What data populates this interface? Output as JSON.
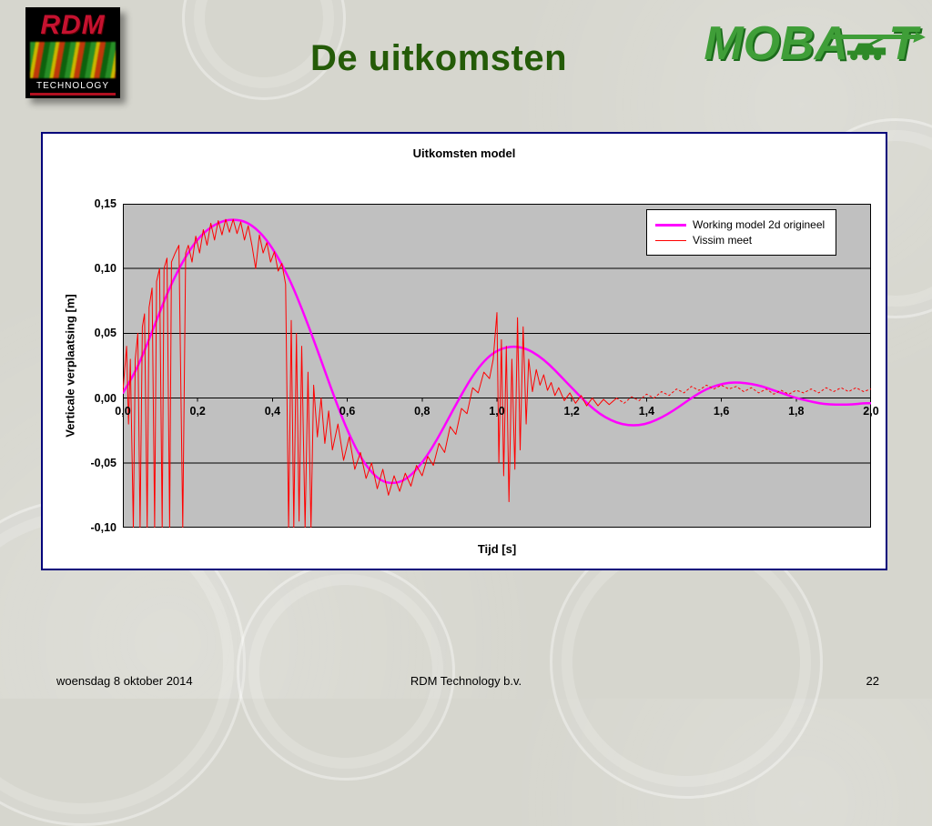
{
  "slide": {
    "title": "De uitkomsten",
    "footer": {
      "date": "woensdag 8 oktober 2014",
      "company": "RDM Technology b.v.",
      "page_number": "22"
    }
  },
  "logos": {
    "rdm": {
      "name": "RDM",
      "subtitle": "TECHNOLOGY"
    },
    "mobat": {
      "part1": "MOB",
      "part2": "A",
      "part3": "T"
    }
  },
  "colors": {
    "title_green": "#245b08",
    "panel_border": "#00007a",
    "plot_background": "#c0c0c0",
    "series_model": "#ff00ff",
    "series_vissim": "#ff0000"
  },
  "chart_data": {
    "type": "line",
    "title": "Uitkomsten model",
    "xlabel": "Tijd [s]",
    "ylabel": "Verticale verplaatsing [m]",
    "xlim": [
      0,
      2
    ],
    "ylim": [
      -0.1,
      0.15
    ],
    "grid": "horizontal",
    "plot_bg": "#c0c0c0",
    "legend_position": "top-right-inside",
    "x_ticks": {
      "values": [
        0.0,
        0.2,
        0.4,
        0.6,
        0.8,
        1.0,
        1.2,
        1.4,
        1.6,
        1.8,
        2.0
      ],
      "labels": [
        "0,0",
        "0,2",
        "0,4",
        "0,6",
        "0,8",
        "1,0",
        "1,2",
        "1,4",
        "1,6",
        "1,8",
        "2,0"
      ]
    },
    "y_ticks": {
      "values": [
        0.15,
        0.1,
        0.05,
        0.0,
        -0.05,
        -0.1
      ],
      "labels": [
        "0,15",
        "0,10",
        "0,05",
        "0,00",
        "-0,05",
        "-0,10"
      ]
    },
    "series": [
      {
        "name": "Working model 2d origineel",
        "color": "#ff00ff",
        "width": 2.5,
        "smooth": true,
        "points": [
          [
            0.0,
            0.004
          ],
          [
            0.03,
            0.018
          ],
          [
            0.06,
            0.038
          ],
          [
            0.09,
            0.06
          ],
          [
            0.12,
            0.082
          ],
          [
            0.15,
            0.1
          ],
          [
            0.18,
            0.115
          ],
          [
            0.21,
            0.126
          ],
          [
            0.24,
            0.133
          ],
          [
            0.27,
            0.137
          ],
          [
            0.3,
            0.138
          ],
          [
            0.33,
            0.136
          ],
          [
            0.36,
            0.13
          ],
          [
            0.39,
            0.12
          ],
          [
            0.42,
            0.106
          ],
          [
            0.45,
            0.089
          ],
          [
            0.48,
            0.068
          ],
          [
            0.51,
            0.045
          ],
          [
            0.54,
            0.021
          ],
          [
            0.57,
            -0.003
          ],
          [
            0.6,
            -0.025
          ],
          [
            0.63,
            -0.043
          ],
          [
            0.66,
            -0.056
          ],
          [
            0.69,
            -0.064
          ],
          [
            0.72,
            -0.066
          ],
          [
            0.75,
            -0.064
          ],
          [
            0.78,
            -0.057
          ],
          [
            0.81,
            -0.046
          ],
          [
            0.84,
            -0.032
          ],
          [
            0.87,
            -0.016
          ],
          [
            0.9,
            0.0
          ],
          [
            0.93,
            0.015
          ],
          [
            0.96,
            0.027
          ],
          [
            0.99,
            0.035
          ],
          [
            1.02,
            0.039
          ],
          [
            1.05,
            0.04
          ],
          [
            1.08,
            0.038
          ],
          [
            1.11,
            0.033
          ],
          [
            1.14,
            0.026
          ],
          [
            1.17,
            0.017
          ],
          [
            1.2,
            0.008
          ],
          [
            1.23,
            -0.001
          ],
          [
            1.26,
            -0.009
          ],
          [
            1.29,
            -0.015
          ],
          [
            1.32,
            -0.019
          ],
          [
            1.35,
            -0.021
          ],
          [
            1.38,
            -0.021
          ],
          [
            1.41,
            -0.019
          ],
          [
            1.44,
            -0.015
          ],
          [
            1.47,
            -0.01
          ],
          [
            1.5,
            -0.004
          ],
          [
            1.53,
            0.002
          ],
          [
            1.56,
            0.007
          ],
          [
            1.59,
            0.01
          ],
          [
            1.62,
            0.012
          ],
          [
            1.65,
            0.012
          ],
          [
            1.68,
            0.011
          ],
          [
            1.71,
            0.009
          ],
          [
            1.74,
            0.006
          ],
          [
            1.77,
            0.003
          ],
          [
            1.8,
            0.0
          ],
          [
            1.83,
            -0.002
          ],
          [
            1.86,
            -0.004
          ],
          [
            1.89,
            -0.005
          ],
          [
            1.92,
            -0.005
          ],
          [
            1.95,
            -0.005
          ],
          [
            1.98,
            -0.004
          ],
          [
            2.0,
            -0.004
          ]
        ]
      },
      {
        "name": "Vissim meet",
        "color": "#ff0000",
        "width": 1,
        "smooth": false,
        "dash_from_x": 1.32,
        "points": [
          [
            0.0,
            0.005
          ],
          [
            0.01,
            0.04
          ],
          [
            0.015,
            -0.02
          ],
          [
            0.02,
            0.03
          ],
          [
            0.028,
            -0.1
          ],
          [
            0.033,
            0.03
          ],
          [
            0.04,
            0.05
          ],
          [
            0.046,
            -0.1
          ],
          [
            0.052,
            0.055
          ],
          [
            0.058,
            0.065
          ],
          [
            0.065,
            -0.1
          ],
          [
            0.07,
            0.07
          ],
          [
            0.078,
            0.085
          ],
          [
            0.085,
            -0.1
          ],
          [
            0.09,
            0.09
          ],
          [
            0.098,
            0.1
          ],
          [
            0.105,
            -0.1
          ],
          [
            0.11,
            0.1
          ],
          [
            0.118,
            0.108
          ],
          [
            0.125,
            -0.1
          ],
          [
            0.13,
            0.105
          ],
          [
            0.14,
            0.112
          ],
          [
            0.15,
            0.118
          ],
          [
            0.16,
            -0.1
          ],
          [
            0.168,
            0.112
          ],
          [
            0.175,
            0.118
          ],
          [
            0.185,
            0.105
          ],
          [
            0.195,
            0.125
          ],
          [
            0.205,
            0.112
          ],
          [
            0.215,
            0.13
          ],
          [
            0.225,
            0.118
          ],
          [
            0.235,
            0.135
          ],
          [
            0.245,
            0.122
          ],
          [
            0.255,
            0.137
          ],
          [
            0.265,
            0.126
          ],
          [
            0.275,
            0.138
          ],
          [
            0.285,
            0.128
          ],
          [
            0.295,
            0.138
          ],
          [
            0.305,
            0.127
          ],
          [
            0.315,
            0.136
          ],
          [
            0.325,
            0.122
          ],
          [
            0.335,
            0.133
          ],
          [
            0.345,
            0.118
          ],
          [
            0.355,
            0.1
          ],
          [
            0.365,
            0.126
          ],
          [
            0.375,
            0.112
          ],
          [
            0.385,
            0.12
          ],
          [
            0.395,
            0.105
          ],
          [
            0.405,
            0.113
          ],
          [
            0.415,
            0.098
          ],
          [
            0.425,
            0.104
          ],
          [
            0.435,
            0.088
          ],
          [
            0.443,
            -0.1
          ],
          [
            0.45,
            0.06
          ],
          [
            0.457,
            -0.1
          ],
          [
            0.464,
            0.05
          ],
          [
            0.471,
            -0.095
          ],
          [
            0.478,
            0.04
          ],
          [
            0.487,
            -0.1
          ],
          [
            0.495,
            0.02
          ],
          [
            0.503,
            -0.1
          ],
          [
            0.51,
            0.01
          ],
          [
            0.52,
            -0.03
          ],
          [
            0.53,
            0.0
          ],
          [
            0.54,
            -0.035
          ],
          [
            0.55,
            -0.01
          ],
          [
            0.56,
            -0.04
          ],
          [
            0.575,
            -0.02
          ],
          [
            0.59,
            -0.048
          ],
          [
            0.605,
            -0.03
          ],
          [
            0.62,
            -0.055
          ],
          [
            0.635,
            -0.042
          ],
          [
            0.65,
            -0.062
          ],
          [
            0.665,
            -0.05
          ],
          [
            0.68,
            -0.07
          ],
          [
            0.695,
            -0.055
          ],
          [
            0.71,
            -0.075
          ],
          [
            0.725,
            -0.06
          ],
          [
            0.74,
            -0.072
          ],
          [
            0.755,
            -0.058
          ],
          [
            0.77,
            -0.068
          ],
          [
            0.785,
            -0.052
          ],
          [
            0.8,
            -0.06
          ],
          [
            0.815,
            -0.045
          ],
          [
            0.83,
            -0.052
          ],
          [
            0.845,
            -0.035
          ],
          [
            0.86,
            -0.042
          ],
          [
            0.875,
            -0.022
          ],
          [
            0.89,
            -0.028
          ],
          [
            0.905,
            -0.008
          ],
          [
            0.92,
            -0.012
          ],
          [
            0.935,
            0.008
          ],
          [
            0.95,
            0.004
          ],
          [
            0.965,
            0.02
          ],
          [
            0.98,
            0.015
          ],
          [
            0.99,
            0.03
          ],
          [
            1.0,
            0.066
          ],
          [
            1.005,
            -0.05
          ],
          [
            1.012,
            0.045
          ],
          [
            1.018,
            -0.06
          ],
          [
            1.025,
            0.04
          ],
          [
            1.032,
            -0.08
          ],
          [
            1.04,
            0.03
          ],
          [
            1.048,
            -0.055
          ],
          [
            1.055,
            0.062
          ],
          [
            1.062,
            -0.04
          ],
          [
            1.07,
            0.055
          ],
          [
            1.078,
            -0.02
          ],
          [
            1.085,
            0.03
          ],
          [
            1.095,
            0.005
          ],
          [
            1.105,
            0.022
          ],
          [
            1.115,
            0.01
          ],
          [
            1.125,
            0.018
          ],
          [
            1.135,
            0.006
          ],
          [
            1.145,
            0.012
          ],
          [
            1.155,
            0.002
          ],
          [
            1.165,
            0.008
          ],
          [
            1.18,
            -0.002
          ],
          [
            1.195,
            0.004
          ],
          [
            1.21,
            -0.004
          ],
          [
            1.225,
            0.002
          ],
          [
            1.24,
            -0.006
          ],
          [
            1.255,
            0.0
          ],
          [
            1.27,
            -0.006
          ],
          [
            1.285,
            -0.001
          ],
          [
            1.3,
            -0.005
          ],
          [
            1.32,
            0.0
          ],
          [
            1.34,
            -0.004
          ],
          [
            1.36,
            0.001
          ],
          [
            1.38,
            -0.002
          ],
          [
            1.4,
            0.003
          ],
          [
            1.42,
            0.0
          ],
          [
            1.44,
            0.005
          ],
          [
            1.46,
            0.002
          ],
          [
            1.48,
            0.007
          ],
          [
            1.5,
            0.004
          ],
          [
            1.52,
            0.009
          ],
          [
            1.54,
            0.006
          ],
          [
            1.56,
            0.01
          ],
          [
            1.58,
            0.007
          ],
          [
            1.6,
            0.01
          ],
          [
            1.62,
            0.007
          ],
          [
            1.64,
            0.009
          ],
          [
            1.66,
            0.005
          ],
          [
            1.68,
            0.008
          ],
          [
            1.7,
            0.004
          ],
          [
            1.72,
            0.007
          ],
          [
            1.74,
            0.003
          ],
          [
            1.76,
            0.006
          ],
          [
            1.78,
            0.003
          ],
          [
            1.8,
            0.006
          ],
          [
            1.82,
            0.004
          ],
          [
            1.84,
            0.007
          ],
          [
            1.86,
            0.004
          ],
          [
            1.88,
            0.008
          ],
          [
            1.9,
            0.005
          ],
          [
            1.92,
            0.008
          ],
          [
            1.94,
            0.005
          ],
          [
            1.96,
            0.008
          ],
          [
            1.98,
            0.005
          ],
          [
            2.0,
            0.007
          ]
        ]
      }
    ]
  }
}
